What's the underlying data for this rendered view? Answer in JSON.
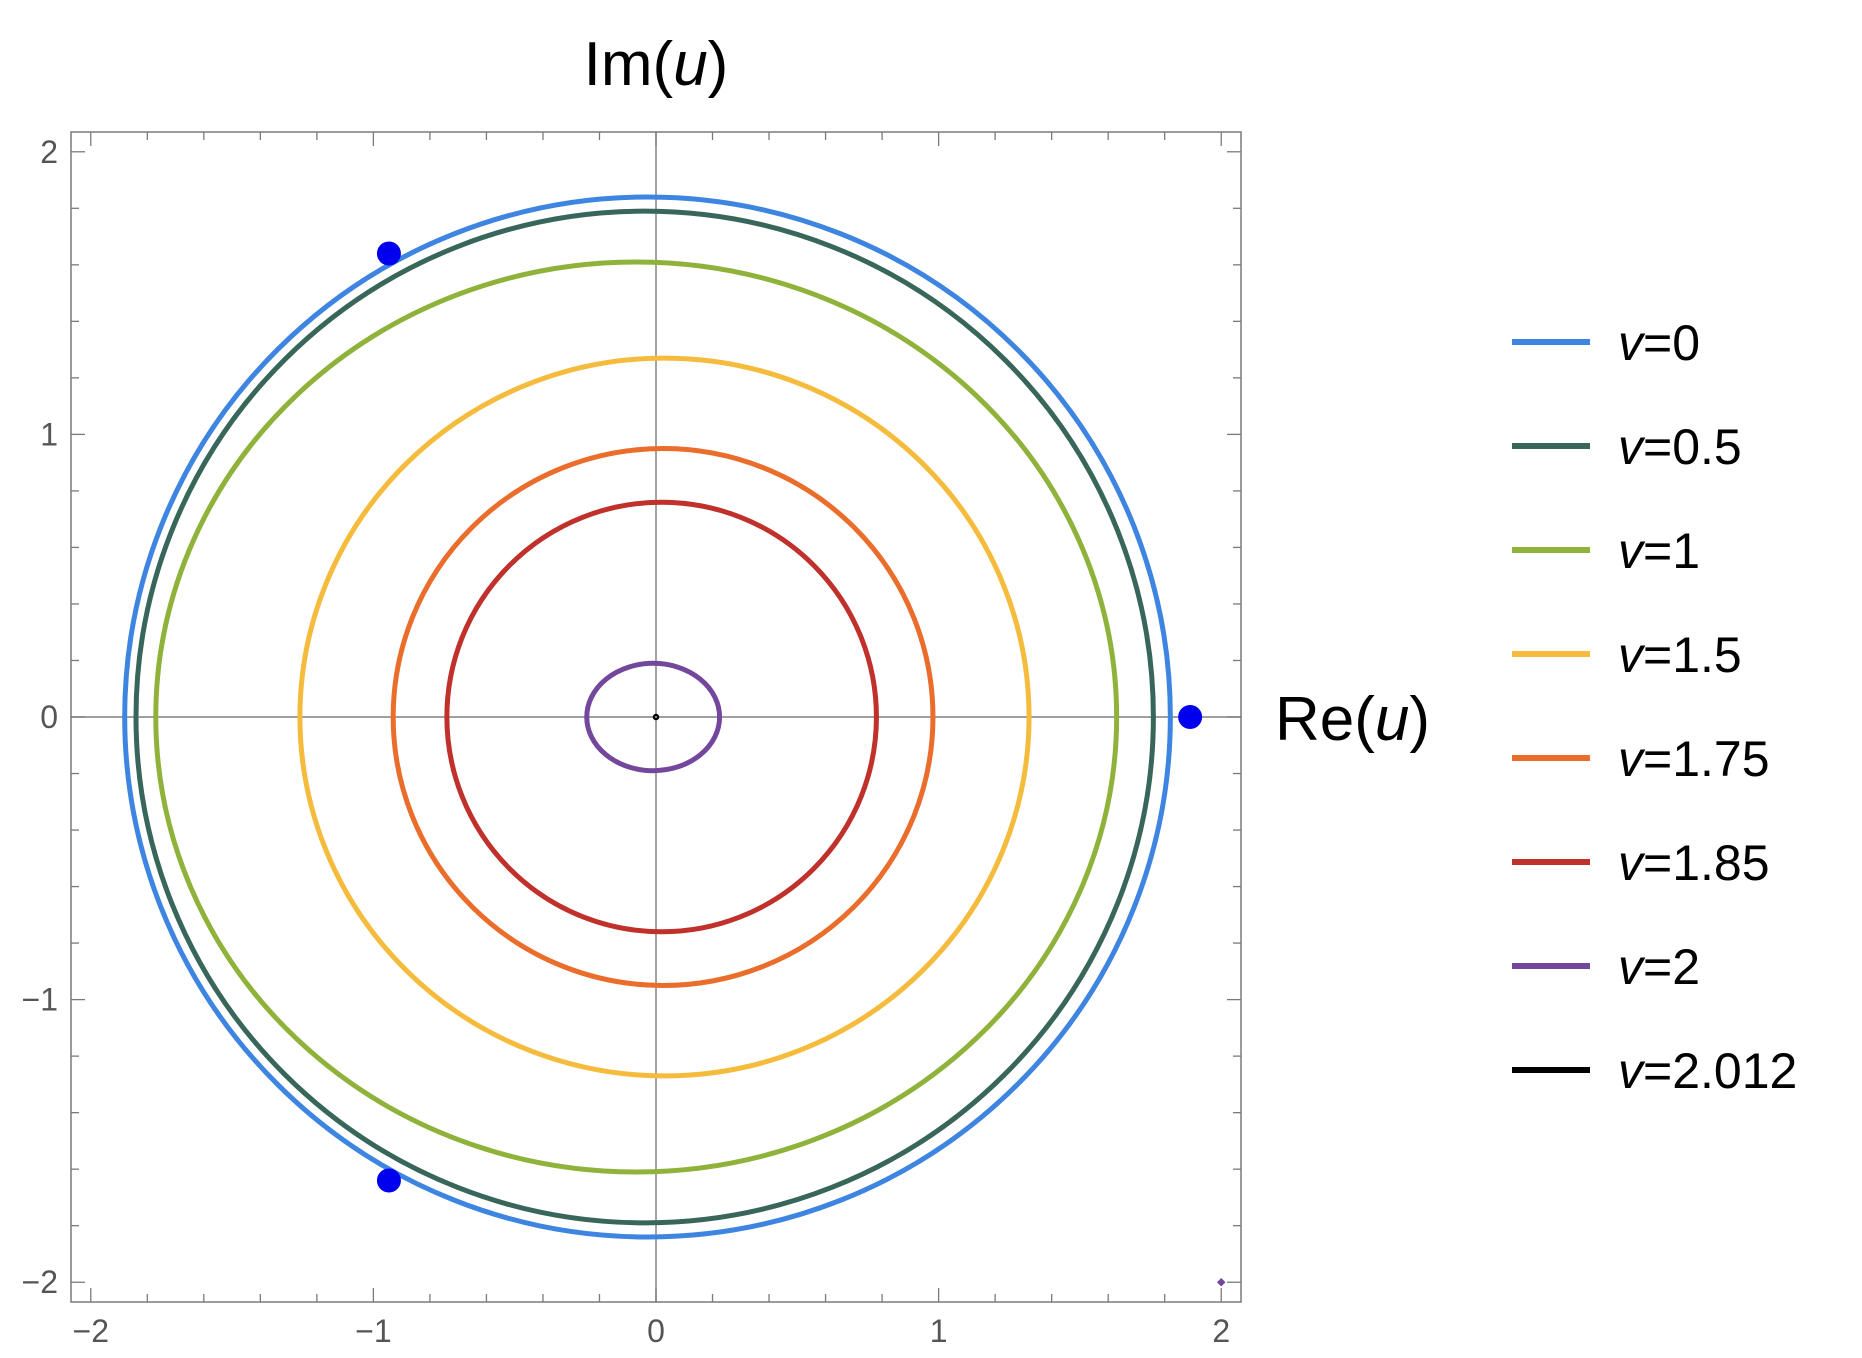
{
  "chart_data": {
    "type": "line",
    "title": "",
    "xlabel": {
      "prefix": "Re(",
      "var": "u",
      "suffix": ")"
    },
    "ylabel": {
      "prefix": "Im(",
      "var": "u",
      "suffix": ")"
    },
    "xlim": [
      -2.07,
      2.07
    ],
    "ylim": [
      -2.07,
      2.07
    ],
    "x_ticks": [
      -2,
      -1,
      0,
      1,
      2
    ],
    "y_ticks": [
      -2,
      -1,
      0,
      1,
      2
    ],
    "x_tick_labels": [
      "−2",
      "−1",
      "0",
      "1",
      "2"
    ],
    "y_tick_labels": [
      "−2",
      "−1",
      "0",
      "1",
      "2"
    ],
    "grid": false,
    "legend_position": "right",
    "series": [
      {
        "name": "v=0",
        "label_var": "v",
        "label_value": "=0",
        "color": "#3e85e2",
        "center_x": -0.03,
        "rx": 1.85,
        "ry": 1.84
      },
      {
        "name": "v=0.5",
        "label_var": "v",
        "label_value": "=0.5",
        "color": "#38665a",
        "center_x": -0.04,
        "rx": 1.8,
        "ry": 1.79
      },
      {
        "name": "v=1",
        "label_var": "v",
        "label_value": "=1",
        "color": "#8fb23b",
        "center_x": -0.07,
        "rx": 1.7,
        "ry": 1.61
      },
      {
        "name": "v=1.5",
        "label_var": "v",
        "label_value": "=1.5",
        "color": "#f5bb3c",
        "center_x": 0.03,
        "rx": 1.29,
        "ry": 1.27
      },
      {
        "name": "v=1.75",
        "label_var": "v",
        "label_value": "=1.75",
        "color": "#ea6d2b",
        "center_x": 0.025,
        "rx": 0.955,
        "ry": 0.95
      },
      {
        "name": "v=1.85",
        "label_var": "v",
        "label_value": "=1.85",
        "color": "#c0312b",
        "center_x": 0.02,
        "rx": 0.76,
        "ry": 0.76
      },
      {
        "name": "v=2",
        "label_var": "v",
        "label_value": "=2",
        "color": "#73489c",
        "center_x": -0.01,
        "rx": 0.235,
        "ry": 0.19
      },
      {
        "name": "v=2.012",
        "label_var": "v",
        "label_value": "=2.012",
        "color": "#000000",
        "center_x": 0.0,
        "rx": 0.008,
        "ry": 0.008
      }
    ],
    "points": [
      {
        "x": 1.89,
        "y": 0.0,
        "color": "#0000ee"
      },
      {
        "x": -0.945,
        "y": 1.64,
        "color": "#0000ee"
      },
      {
        "x": -0.945,
        "y": -1.64,
        "color": "#0000ee"
      }
    ],
    "marker": {
      "x": 2.0,
      "y": -2.0,
      "color": "#73489c"
    }
  }
}
